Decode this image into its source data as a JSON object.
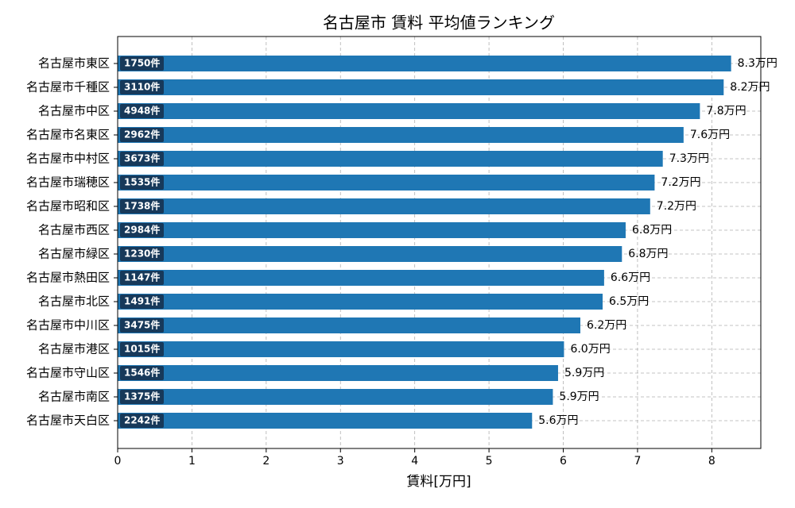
{
  "chart_data": {
    "type": "bar",
    "orientation": "horizontal",
    "title": "名古屋市 賃料 平均値ランキング",
    "x_label": "賃料[万円]",
    "categories": [
      "名古屋市東区",
      "名古屋市千種区",
      "名古屋市中区",
      "名古屋市名東区",
      "名古屋市中村区",
      "名古屋市瑞穂区",
      "名古屋市昭和区",
      "名古屋市西区",
      "名古屋市緑区",
      "名古屋市熱田区",
      "名古屋市北区",
      "名古屋市中川区",
      "名古屋市港区",
      "名古屋市守山区",
      "名古屋市南区",
      "名古屋市天白区"
    ],
    "values": [
      8.26,
      8.16,
      7.84,
      7.62,
      7.34,
      7.23,
      7.17,
      6.84,
      6.79,
      6.55,
      6.53,
      6.23,
      6.01,
      5.93,
      5.86,
      5.58
    ],
    "value_labels": [
      "8.3万円",
      "8.2万円",
      "7.8万円",
      "7.6万円",
      "7.3万円",
      "7.2万円",
      "7.2万円",
      "6.8万円",
      "6.8万円",
      "6.6万円",
      "6.5万円",
      "6.2万円",
      "6.0万円",
      "5.9万円",
      "5.9万円",
      "5.6万円"
    ],
    "count_labels": [
      "1750件",
      "3110件",
      "4948件",
      "2962件",
      "3673件",
      "1535件",
      "1738件",
      "2984件",
      "1230件",
      "1147件",
      "1491件",
      "3475件",
      "1015件",
      "1546件",
      "1375件",
      "2242件"
    ],
    "color": "#1f77b4",
    "xlim": [
      0,
      8.66
    ],
    "xticks": [
      0,
      1,
      2,
      3,
      4,
      5,
      6,
      7,
      8
    ],
    "grid": true
  }
}
